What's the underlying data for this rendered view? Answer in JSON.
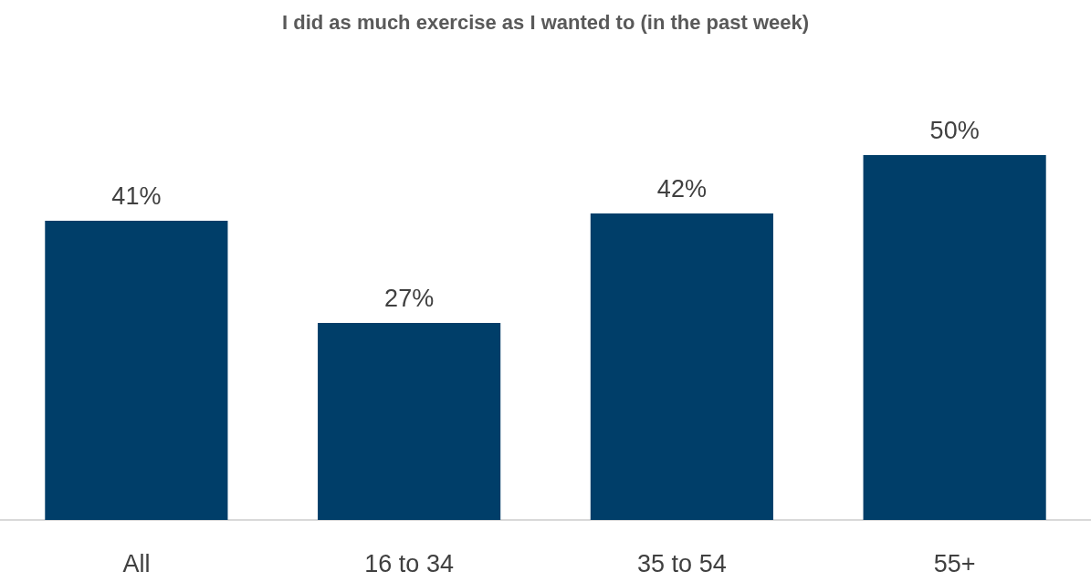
{
  "chart_data": {
    "type": "bar",
    "title": "I did as much exercise as I wanted to (in the past week)",
    "categories": [
      "All",
      "16 to 34",
      "35 to 54",
      "55+"
    ],
    "values": [
      41,
      27,
      42,
      50
    ],
    "value_labels": [
      "41%",
      "27%",
      "42%",
      "50%"
    ],
    "color": "#003e69"
  }
}
